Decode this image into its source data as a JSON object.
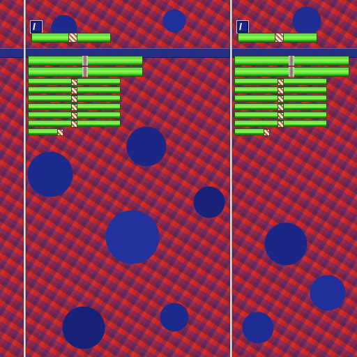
{
  "theme": {
    "background": "#c82a25",
    "accent": "#8dff55",
    "panel_blue": "#202f86",
    "handle": "#f4d9bb"
  },
  "panes": [
    {
      "name": "left-pane",
      "has_badge": true,
      "control_count": 10,
      "progress": [
        1,
        1,
        1,
        1,
        1,
        1,
        1,
        1,
        1,
        0.3
      ]
    },
    {
      "name": "right-pane",
      "has_badge": true,
      "control_count": 10,
      "progress": [
        1,
        1,
        1,
        1,
        1,
        1,
        1,
        1,
        1,
        0.3
      ]
    }
  ]
}
